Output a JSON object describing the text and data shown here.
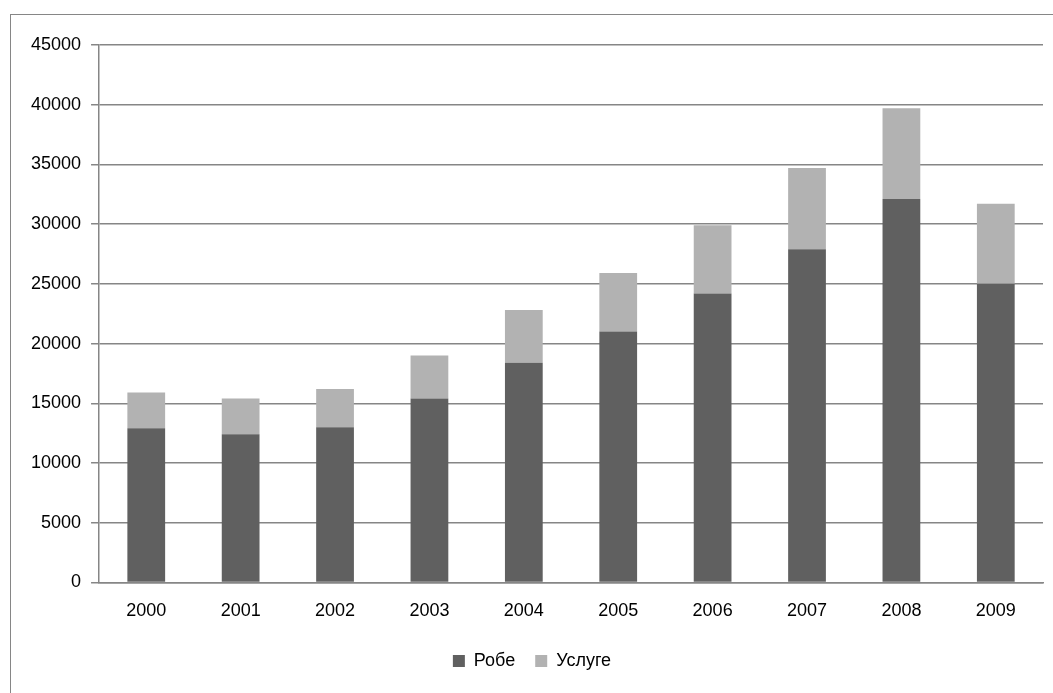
{
  "chart_data": {
    "type": "bar",
    "stacked": true,
    "categories": [
      "2000",
      "2001",
      "2002",
      "2003",
      "2004",
      "2005",
      "2006",
      "2007",
      "2008",
      "2009"
    ],
    "series": [
      {
        "name": "Робе",
        "color": "#606060",
        "values": [
          12900,
          12400,
          13000,
          15400,
          18400,
          21000,
          24200,
          27900,
          32100,
          25000
        ]
      },
      {
        "name": "Услуге",
        "color": "#b2b2b2",
        "values": [
          3000,
          3000,
          3200,
          3600,
          4400,
          4900,
          5700,
          6800,
          7600,
          6700
        ]
      }
    ],
    "ylim": [
      0,
      45000
    ],
    "yticks": [
      0,
      5000,
      10000,
      15000,
      20000,
      25000,
      30000,
      35000,
      40000,
      45000
    ],
    "grid": "y",
    "legend": "bottom"
  }
}
